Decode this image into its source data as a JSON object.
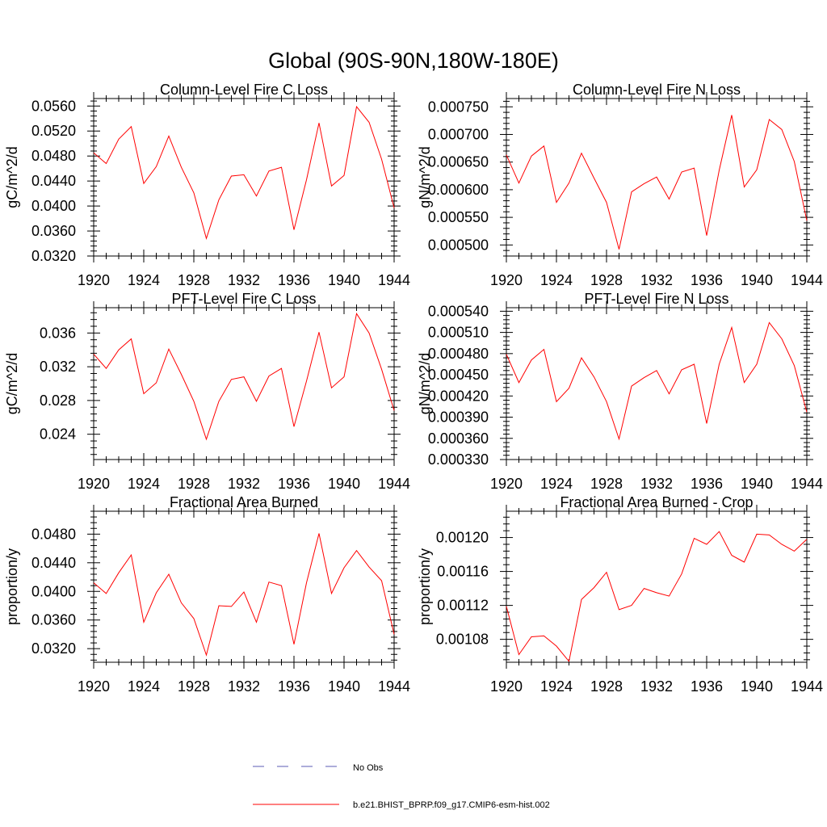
{
  "figure_title": "Global (90S-90N,180W-180E)",
  "legend": {
    "entries": [
      {
        "label": "No Obs",
        "style": "dashed",
        "color": "#5b5bb5"
      },
      {
        "label": "b.e21.BHIST_BPRP.f09_g17.CMIP6-esm-hist.002",
        "style": "solid",
        "color": "#ff0000"
      }
    ]
  },
  "colors": {
    "series": "#ff0000",
    "axis": "#000000"
  },
  "chart_data": [
    {
      "type": "line",
      "title": "Column-Level Fire C Loss",
      "xlabel": "",
      "ylabel": "gC/m^2/d",
      "xlim": [
        1920,
        1944
      ],
      "ylim": [
        0.032,
        0.0572
      ],
      "xticks": [
        "1920",
        "1924",
        "1928",
        "1932",
        "1936",
        "1940",
        "1944"
      ],
      "yticks": [
        "0.0320",
        "0.0360",
        "0.0400",
        "0.0440",
        "0.0480",
        "0.0520",
        "0.0560"
      ],
      "ytick_values": [
        0.032,
        0.036,
        0.04,
        0.044,
        0.048,
        0.052,
        0.056
      ],
      "x": [
        1920,
        1921,
        1922,
        1923,
        1924,
        1925,
        1926,
        1927,
        1928,
        1929,
        1930,
        1931,
        1932,
        1933,
        1934,
        1935,
        1936,
        1937,
        1938,
        1939,
        1940,
        1941,
        1942,
        1943,
        1944
      ],
      "series": [
        {
          "name": "b.e21.BHIST_BPRP.f09_g17.CMIP6-esm-hist.002",
          "values": [
            0.0485,
            0.0468,
            0.0507,
            0.0527,
            0.0436,
            0.0463,
            0.0512,
            0.0462,
            0.0421,
            0.0348,
            0.041,
            0.0448,
            0.045,
            0.0416,
            0.0456,
            0.0462,
            0.0362,
            0.0442,
            0.0533,
            0.0432,
            0.0449,
            0.0559,
            0.0534,
            0.0475,
            0.0397
          ]
        }
      ]
    },
    {
      "type": "line",
      "title": "Column-Level Fire N Loss",
      "xlabel": "",
      "ylabel": "gN/m^2/d",
      "xlim": [
        1920,
        1944
      ],
      "ylim": [
        0.00048,
        0.000765
      ],
      "xticks": [
        "1920",
        "1924",
        "1928",
        "1932",
        "1936",
        "1940",
        "1944"
      ],
      "yticks": [
        "0.000500",
        "0.000550",
        "0.000600",
        "0.000650",
        "0.000700",
        "0.000750"
      ],
      "ytick_values": [
        0.0005,
        0.00055,
        0.0006,
        0.00065,
        0.0007,
        0.00075
      ],
      "x": [
        1920,
        1921,
        1922,
        1923,
        1924,
        1925,
        1926,
        1927,
        1928,
        1929,
        1930,
        1931,
        1932,
        1933,
        1934,
        1935,
        1936,
        1937,
        1938,
        1939,
        1940,
        1941,
        1942,
        1943,
        1944
      ],
      "series": [
        {
          "name": "b.e21.BHIST_BPRP.f09_g17.CMIP6-esm-hist.002",
          "values": [
            0.000663,
            0.000612,
            0.000661,
            0.000679,
            0.000577,
            0.000612,
            0.000666,
            0.000621,
            0.000577,
            0.000492,
            0.000596,
            0.000611,
            0.000623,
            0.000583,
            0.000632,
            0.000639,
            0.000517,
            0.000635,
            0.000735,
            0.000605,
            0.000636,
            0.000727,
            0.000709,
            0.000651,
            0.000544
          ]
        }
      ]
    },
    {
      "type": "line",
      "title": "PFT-Level Fire C Loss",
      "xlabel": "",
      "ylabel": "gC/m^2/d",
      "xlim": [
        1920,
        1944
      ],
      "ylim": [
        0.021,
        0.039
      ],
      "xticks": [
        "1920",
        "1924",
        "1928",
        "1932",
        "1936",
        "1940",
        "1944"
      ],
      "yticks": [
        "0.024",
        "0.028",
        "0.032",
        "0.036"
      ],
      "ytick_values": [
        0.024,
        0.028,
        0.032,
        0.036
      ],
      "x": [
        1920,
        1921,
        1922,
        1923,
        1924,
        1925,
        1926,
        1927,
        1928,
        1929,
        1930,
        1931,
        1932,
        1933,
        1934,
        1935,
        1936,
        1937,
        1938,
        1939,
        1940,
        1941,
        1942,
        1943,
        1944
      ],
      "series": [
        {
          "name": "b.e21.BHIST_BPRP.f09_g17.CMIP6-esm-hist.002",
          "values": [
            0.0335,
            0.0318,
            0.034,
            0.0353,
            0.0288,
            0.0301,
            0.0341,
            0.0311,
            0.0279,
            0.0234,
            0.0279,
            0.0305,
            0.0308,
            0.0279,
            0.0309,
            0.0318,
            0.0249,
            0.0303,
            0.0361,
            0.0295,
            0.0308,
            0.0383,
            0.036,
            0.0317,
            0.0268
          ]
        }
      ]
    },
    {
      "type": "line",
      "title": "PFT-Level Fire N Loss",
      "xlabel": "",
      "ylabel": "gN/m^2/d",
      "xlim": [
        1920,
        1944
      ],
      "ylim": [
        0.00033,
        0.000545
      ],
      "xticks": [
        "1920",
        "1924",
        "1928",
        "1932",
        "1936",
        "1940",
        "1944"
      ],
      "yticks": [
        "0.000330",
        "0.000360",
        "0.000390",
        "0.000420",
        "0.000450",
        "0.000480",
        "0.000510",
        "0.000540"
      ],
      "ytick_values": [
        0.00033,
        0.00036,
        0.00039,
        0.00042,
        0.00045,
        0.00048,
        0.00051,
        0.00054
      ],
      "x": [
        1920,
        1921,
        1922,
        1923,
        1924,
        1925,
        1926,
        1927,
        1928,
        1929,
        1930,
        1931,
        1932,
        1933,
        1934,
        1935,
        1936,
        1937,
        1938,
        1939,
        1940,
        1941,
        1942,
        1943,
        1944
      ],
      "series": [
        {
          "name": "b.e21.BHIST_BPRP.f09_g17.CMIP6-esm-hist.002",
          "values": [
            0.000479,
            0.000439,
            0.000471,
            0.000486,
            0.000412,
            0.000431,
            0.000474,
            0.000447,
            0.000412,
            0.000359,
            0.000434,
            0.000446,
            0.000456,
            0.000423,
            0.000457,
            0.000465,
            0.000381,
            0.000465,
            0.000517,
            0.000439,
            0.000465,
            0.000524,
            0.000501,
            0.000463,
            0.000397
          ]
        }
      ]
    },
    {
      "type": "line",
      "title": "Fractional Area Burned",
      "xlabel": "",
      "ylabel": "proportion/y",
      "xlim": [
        1920,
        1944
      ],
      "ylim": [
        0.0301,
        0.0512
      ],
      "xticks": [
        "1920",
        "1924",
        "1928",
        "1932",
        "1936",
        "1940",
        "1944"
      ],
      "yticks": [
        "0.0320",
        "0.0360",
        "0.0400",
        "0.0440",
        "0.0480"
      ],
      "ytick_values": [
        0.032,
        0.036,
        0.04,
        0.044,
        0.048
      ],
      "x": [
        1920,
        1921,
        1922,
        1923,
        1924,
        1925,
        1926,
        1927,
        1928,
        1929,
        1930,
        1931,
        1932,
        1933,
        1934,
        1935,
        1936,
        1937,
        1938,
        1939,
        1940,
        1941,
        1942,
        1943,
        1944
      ],
      "series": [
        {
          "name": "b.e21.BHIST_BPRP.f09_g17.CMIP6-esm-hist.002",
          "values": [
            0.0412,
            0.0397,
            0.0426,
            0.0451,
            0.0357,
            0.0398,
            0.0424,
            0.0384,
            0.0362,
            0.0311,
            0.038,
            0.0379,
            0.0399,
            0.0357,
            0.0413,
            0.0408,
            0.0326,
            0.0412,
            0.0481,
            0.0397,
            0.0433,
            0.0457,
            0.0434,
            0.0415,
            0.034
          ]
        }
      ]
    },
    {
      "type": "line",
      "title": "Fractional Area Burned - Crop",
      "xlabel": "",
      "ylabel": "proportion/y",
      "xlim": [
        1920,
        1944
      ],
      "ylim": [
        0.001053,
        0.001231
      ],
      "xticks": [
        "1920",
        "1924",
        "1928",
        "1932",
        "1936",
        "1940",
        "1944"
      ],
      "yticks": [
        "0.00108",
        "0.00112",
        "0.00116",
        "0.00120"
      ],
      "ytick_values": [
        0.00108,
        0.00112,
        0.00116,
        0.0012
      ],
      "x": [
        1920,
        1921,
        1922,
        1923,
        1924,
        1925,
        1926,
        1927,
        1928,
        1929,
        1930,
        1931,
        1932,
        1933,
        1934,
        1935,
        1936,
        1937,
        1938,
        1939,
        1940,
        1941,
        1942,
        1943,
        1944
      ],
      "series": [
        {
          "name": "b.e21.BHIST_BPRP.f09_g17.CMIP6-esm-hist.002",
          "values": [
            0.001119,
            0.001062,
            0.001083,
            0.001084,
            0.001072,
            0.001054,
            0.001127,
            0.001141,
            0.001159,
            0.001115,
            0.00112,
            0.00114,
            0.001135,
            0.001131,
            0.001157,
            0.001199,
            0.001192,
            0.001207,
            0.001179,
            0.001171,
            0.001204,
            0.001203,
            0.001192,
            0.001184,
            0.001198
          ]
        }
      ]
    }
  ]
}
